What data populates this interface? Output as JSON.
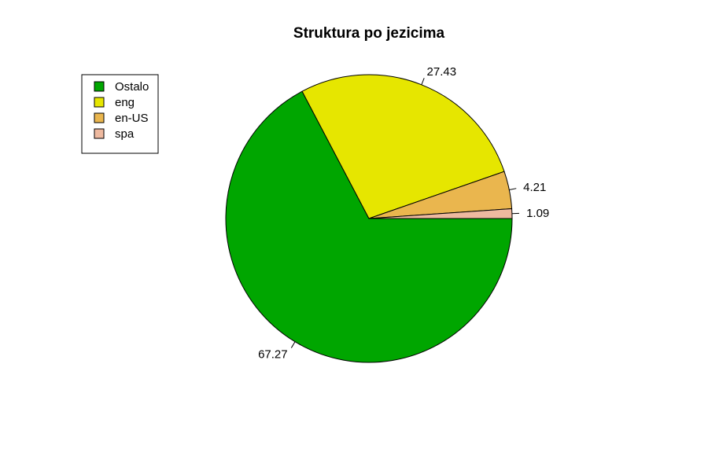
{
  "chart_data": {
    "type": "pie",
    "title": "Struktura po jezicima",
    "categories": [
      "Ostalo",
      "eng",
      "en-US",
      "spa"
    ],
    "values": [
      67.27,
      27.43,
      4.21,
      1.09
    ],
    "labels": [
      "67.27",
      "27.43",
      "4.21",
      "1.09"
    ],
    "colors": [
      "#00A600",
      "#E6E600",
      "#EAB64E",
      "#EEB99F"
    ],
    "legend_position": "top-left",
    "start": "3 o'clock",
    "direction": "clockwise"
  }
}
